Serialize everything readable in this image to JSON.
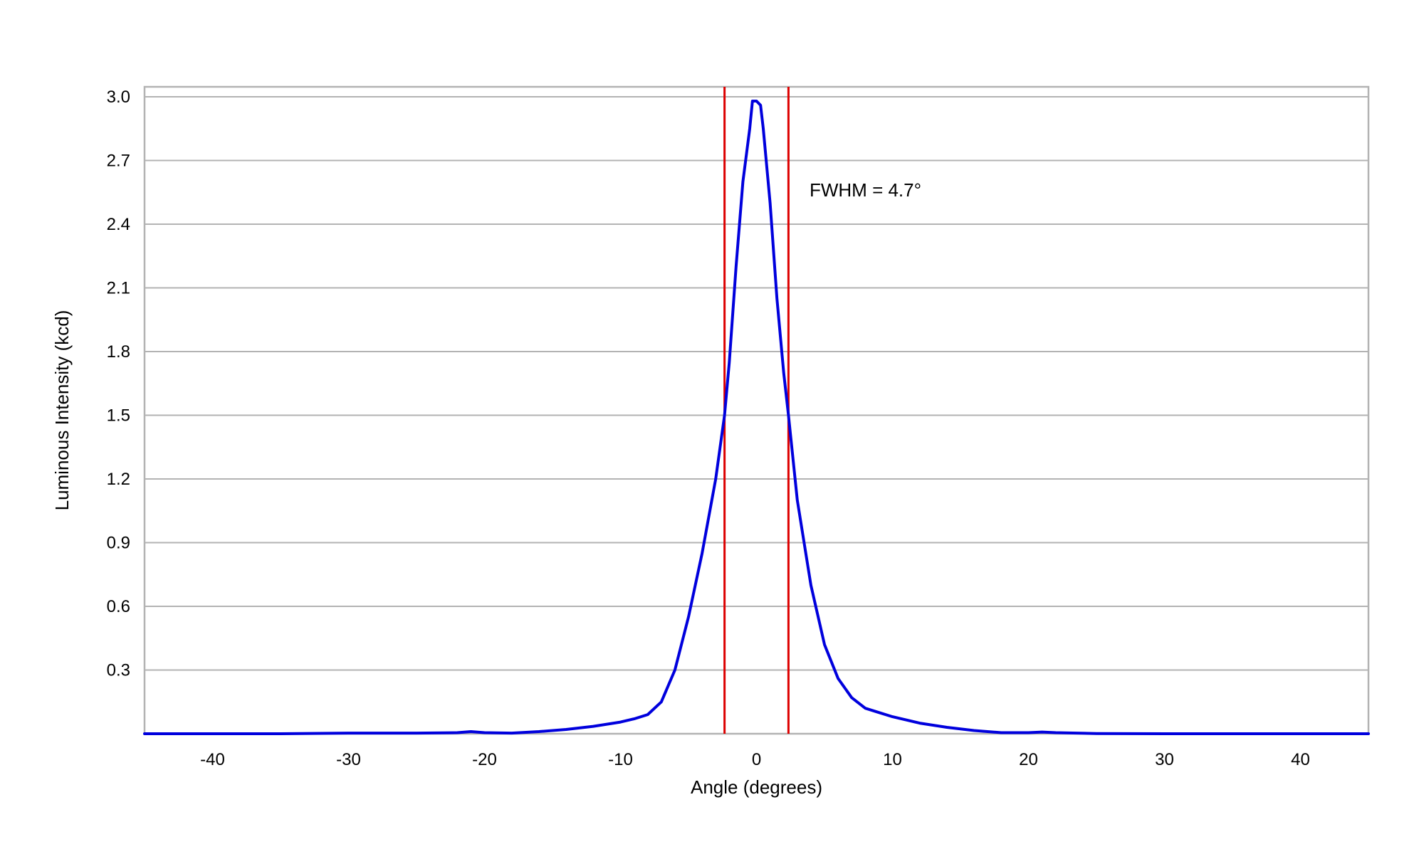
{
  "chart_data": {
    "type": "line",
    "title": "",
    "xlabel": "Angle (degrees)",
    "ylabel": "Luminous Intensity (kcd)",
    "xlim": [
      -45,
      45
    ],
    "ylim": [
      0,
      3.0
    ],
    "xticks": [
      -40,
      -30,
      -20,
      -10,
      0,
      10,
      20,
      30,
      40
    ],
    "xtick_labels": [
      "-40",
      "-30",
      "-20",
      "-10",
      "0",
      "10",
      "20",
      "30",
      "40"
    ],
    "yticks": [
      0.3,
      0.6,
      0.9,
      1.2,
      1.5,
      1.8,
      2.1,
      2.4,
      2.7,
      3.0
    ],
    "ytick_labels": [
      "0.3",
      "0.6",
      "0.9",
      "1.2",
      "1.5",
      "1.8",
      "2.1",
      "2.4",
      "2.7",
      "3.0"
    ],
    "grid": true,
    "legend": "none",
    "series": [
      {
        "color": "#0000dd",
        "x": [
          -45,
          -40,
          -35,
          -30,
          -25,
          -22,
          -21,
          -20,
          -18,
          -16,
          -14,
          -12,
          -10,
          -9,
          -8,
          -7,
          -6,
          -5,
          -4,
          -3,
          -2.35,
          -2,
          -1.5,
          -1,
          -0.5,
          -0.3,
          0,
          0.3,
          0.5,
          1,
          1.5,
          2,
          2.35,
          3,
          4,
          5,
          6,
          7,
          8,
          9,
          10,
          12,
          14,
          16,
          18,
          20,
          21,
          22,
          25,
          30,
          35,
          40,
          45
        ],
        "y": [
          0.0,
          0.0,
          0.0,
          0.003,
          0.003,
          0.005,
          0.01,
          0.005,
          0.003,
          0.01,
          0.02,
          0.035,
          0.055,
          0.07,
          0.09,
          0.15,
          0.3,
          0.55,
          0.85,
          1.2,
          1.5,
          1.75,
          2.2,
          2.6,
          2.85,
          2.98,
          2.98,
          2.96,
          2.85,
          2.5,
          2.05,
          1.7,
          1.5,
          1.1,
          0.7,
          0.42,
          0.26,
          0.17,
          0.12,
          0.1,
          0.08,
          0.05,
          0.03,
          0.015,
          0.005,
          0.005,
          0.008,
          0.005,
          0.001,
          0.0,
          0.0,
          0.0,
          0.0
        ]
      }
    ],
    "vertical_lines": [
      {
        "x": -2.35,
        "color": "#dd0000"
      },
      {
        "x": 2.35,
        "color": "#dd0000"
      }
    ],
    "annotations": [
      {
        "text": "FWHM = 4.7°",
        "x": 3.9,
        "y": 2.53
      }
    ]
  }
}
